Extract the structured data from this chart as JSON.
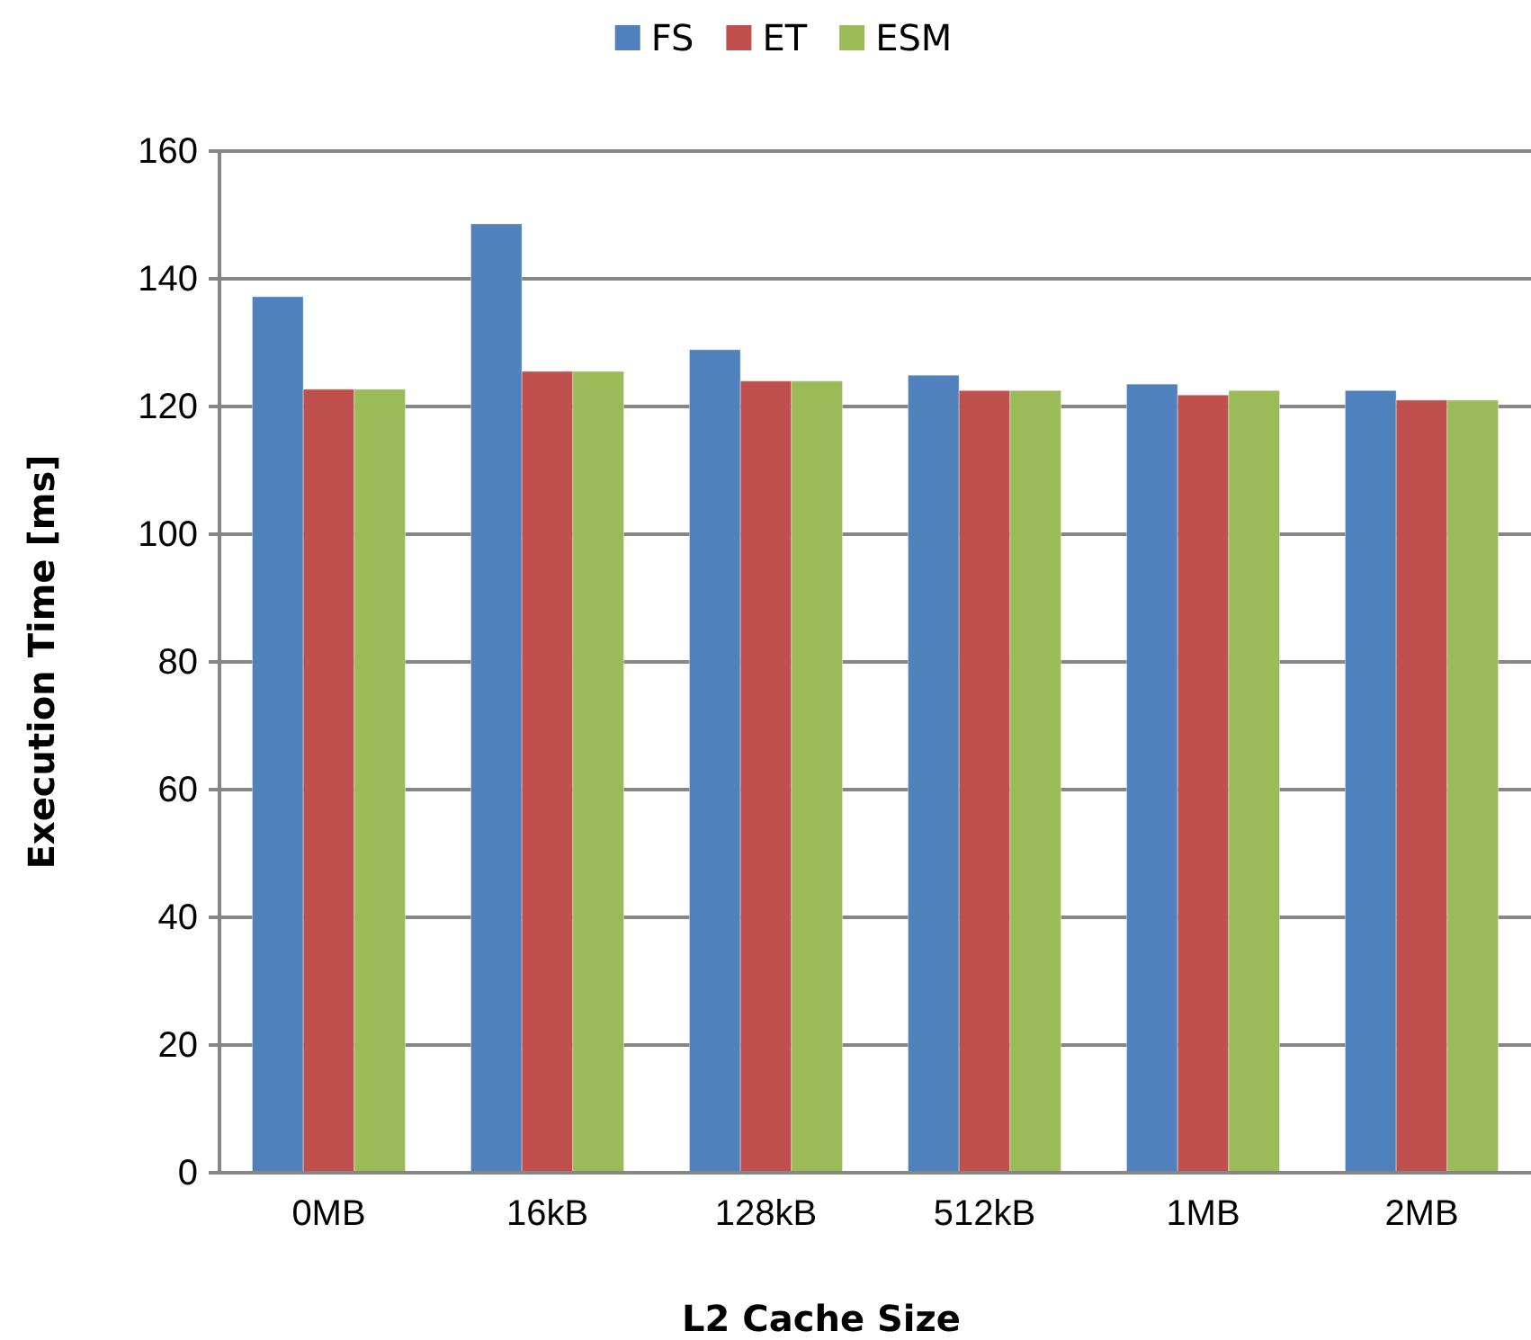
{
  "chart_data": {
    "type": "bar",
    "xlabel": "L2 Cache Size",
    "ylabel": "Execution Time [ms]",
    "categories": [
      "0MB",
      "16kB",
      "128kB",
      "512kB",
      "1MB",
      "2MB"
    ],
    "series": [
      {
        "name": "FS",
        "color": "#4f81bd",
        "values": [
          137.2,
          148.6,
          128.9,
          124.9,
          123.5,
          122.5
        ]
      },
      {
        "name": "ET",
        "color": "#c0504d",
        "values": [
          122.7,
          125.5,
          124,
          122.5,
          121.8,
          121
        ]
      },
      {
        "name": "ESM",
        "color": "#9bbb59",
        "values": [
          122.7,
          125.5,
          124,
          122.5,
          122.5,
          121
        ]
      }
    ],
    "ylim": [
      0,
      160
    ],
    "yticks": [
      0,
      20,
      40,
      60,
      80,
      100,
      120,
      140,
      160
    ],
    "grid": "y",
    "legend": "top"
  }
}
